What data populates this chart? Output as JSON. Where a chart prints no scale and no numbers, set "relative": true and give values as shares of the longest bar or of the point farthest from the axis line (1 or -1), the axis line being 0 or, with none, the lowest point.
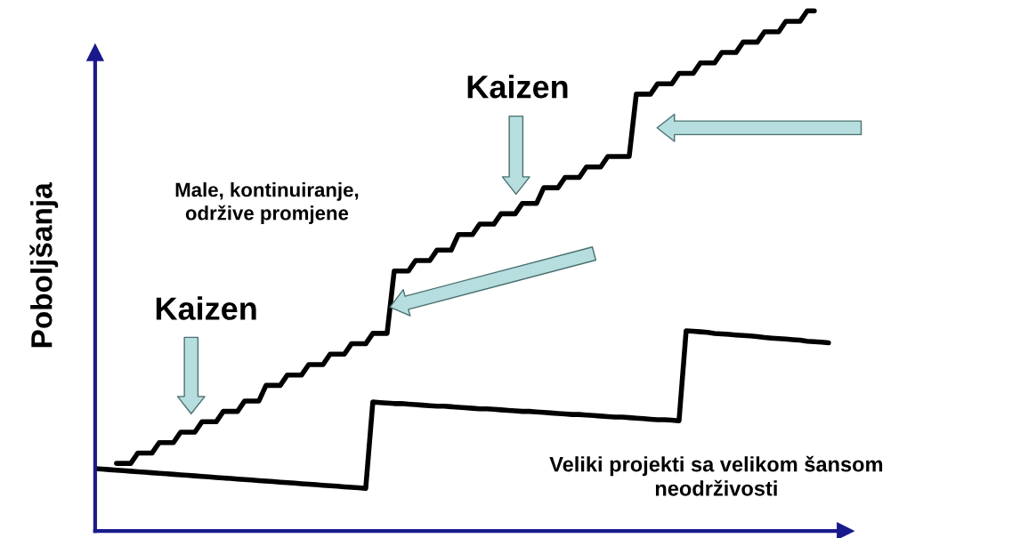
{
  "chart_data": {
    "type": "line",
    "relative": true,
    "ylabel": "Poboljšanja",
    "marker": "none",
    "line_style": "solid",
    "annotations": [
      "Kaizen",
      "Kaizen",
      "Male, kontinuiranje,\nodržive promjene",
      "Veliki projekti sa velikom šansom\nneodrživosti"
    ],
    "categories": [
      null,
      null,
      null,
      null,
      null,
      null,
      null,
      null,
      null,
      null,
      null,
      null,
      null,
      null,
      null,
      null,
      null,
      null,
      null,
      null,
      null,
      null,
      null,
      null,
      null,
      null,
      null,
      null,
      null,
      null,
      null,
      null,
      null,
      null,
      null,
      null,
      null,
      null,
      null,
      null,
      null,
      null,
      null,
      null,
      null,
      null,
      null,
      null,
      null,
      null,
      null,
      null,
      null,
      null,
      null,
      null,
      null,
      null,
      null,
      null,
      null,
      null,
      null,
      null,
      null,
      null,
      null,
      null,
      null,
      null,
      null,
      null,
      null,
      null,
      null,
      null,
      null,
      null,
      null,
      null,
      null,
      null,
      null,
      null,
      null,
      null,
      null,
      null,
      null,
      null,
      null,
      null,
      null,
      null,
      null,
      null,
      null,
      null,
      null,
      null,
      null,
      null,
      null,
      null
    ],
    "series": [
      {
        "color": "#000000",
        "values": [
          null,
          null,
          null,
          0.13,
          0.13,
          0.13,
          0.15,
          0.15,
          0.15,
          0.17,
          0.17,
          0.17,
          0.19,
          0.19,
          0.19,
          0.21,
          0.21,
          0.21,
          0.23,
          0.23,
          0.23,
          0.25,
          0.25,
          0.25,
          0.28,
          0.28,
          0.28,
          0.3,
          0.3,
          0.3,
          0.32,
          0.32,
          0.32,
          0.34,
          0.34,
          0.34,
          0.36,
          0.36,
          0.36,
          0.38,
          0.38,
          0.38,
          0.5,
          0.5,
          0.5,
          0.52,
          0.52,
          0.52,
          0.54,
          0.54,
          0.54,
          0.57,
          0.57,
          0.57,
          0.59,
          0.59,
          0.59,
          0.61,
          0.61,
          0.61,
          0.63,
          0.63,
          0.63,
          0.66,
          0.66,
          0.66,
          0.68,
          0.68,
          0.68,
          0.7,
          0.7,
          0.7,
          0.72,
          0.72,
          0.72,
          0.72,
          0.84,
          0.84,
          0.84,
          0.86,
          0.86,
          0.86,
          0.88,
          0.88,
          0.88,
          0.9,
          0.9,
          0.9,
          0.92,
          0.92,
          0.92,
          0.94,
          0.94,
          0.94,
          0.96,
          0.96,
          0.96,
          0.98,
          0.98,
          0.98,
          1.0,
          1.0,
          null,
          null
        ]
      },
      {
        "color": "#000000",
        "values": [
          0.12,
          0.119,
          0.118,
          0.117,
          0.116,
          0.115,
          0.114,
          0.113,
          0.112,
          0.111,
          0.11,
          0.109,
          0.108,
          0.107,
          0.106,
          0.105,
          0.104,
          0.103,
          0.102,
          0.101,
          0.1,
          0.099,
          0.098,
          0.097,
          0.096,
          0.095,
          0.094,
          0.093,
          0.092,
          0.091,
          0.09,
          0.089,
          0.088,
          0.087,
          0.086,
          0.085,
          0.084,
          0.083,
          0.082,
          0.248,
          0.247,
          0.246,
          0.245,
          0.245,
          0.244,
          0.243,
          0.242,
          0.241,
          0.24,
          0.24,
          0.239,
          0.238,
          0.237,
          0.236,
          0.235,
          0.235,
          0.234,
          0.233,
          0.232,
          0.231,
          0.23,
          0.23,
          0.229,
          0.228,
          0.227,
          0.226,
          0.225,
          0.224,
          0.224,
          0.223,
          0.222,
          0.221,
          0.22,
          0.219,
          0.219,
          0.218,
          0.217,
          0.216,
          0.215,
          0.214,
          0.214,
          0.213,
          0.212,
          0.385,
          0.384,
          0.383,
          0.382,
          0.38,
          0.379,
          0.378,
          0.377,
          0.376,
          0.375,
          0.374,
          0.372,
          0.371,
          0.37,
          0.369,
          0.368,
          0.367,
          0.365,
          0.364,
          0.363,
          0.362
        ]
      }
    ]
  }
}
